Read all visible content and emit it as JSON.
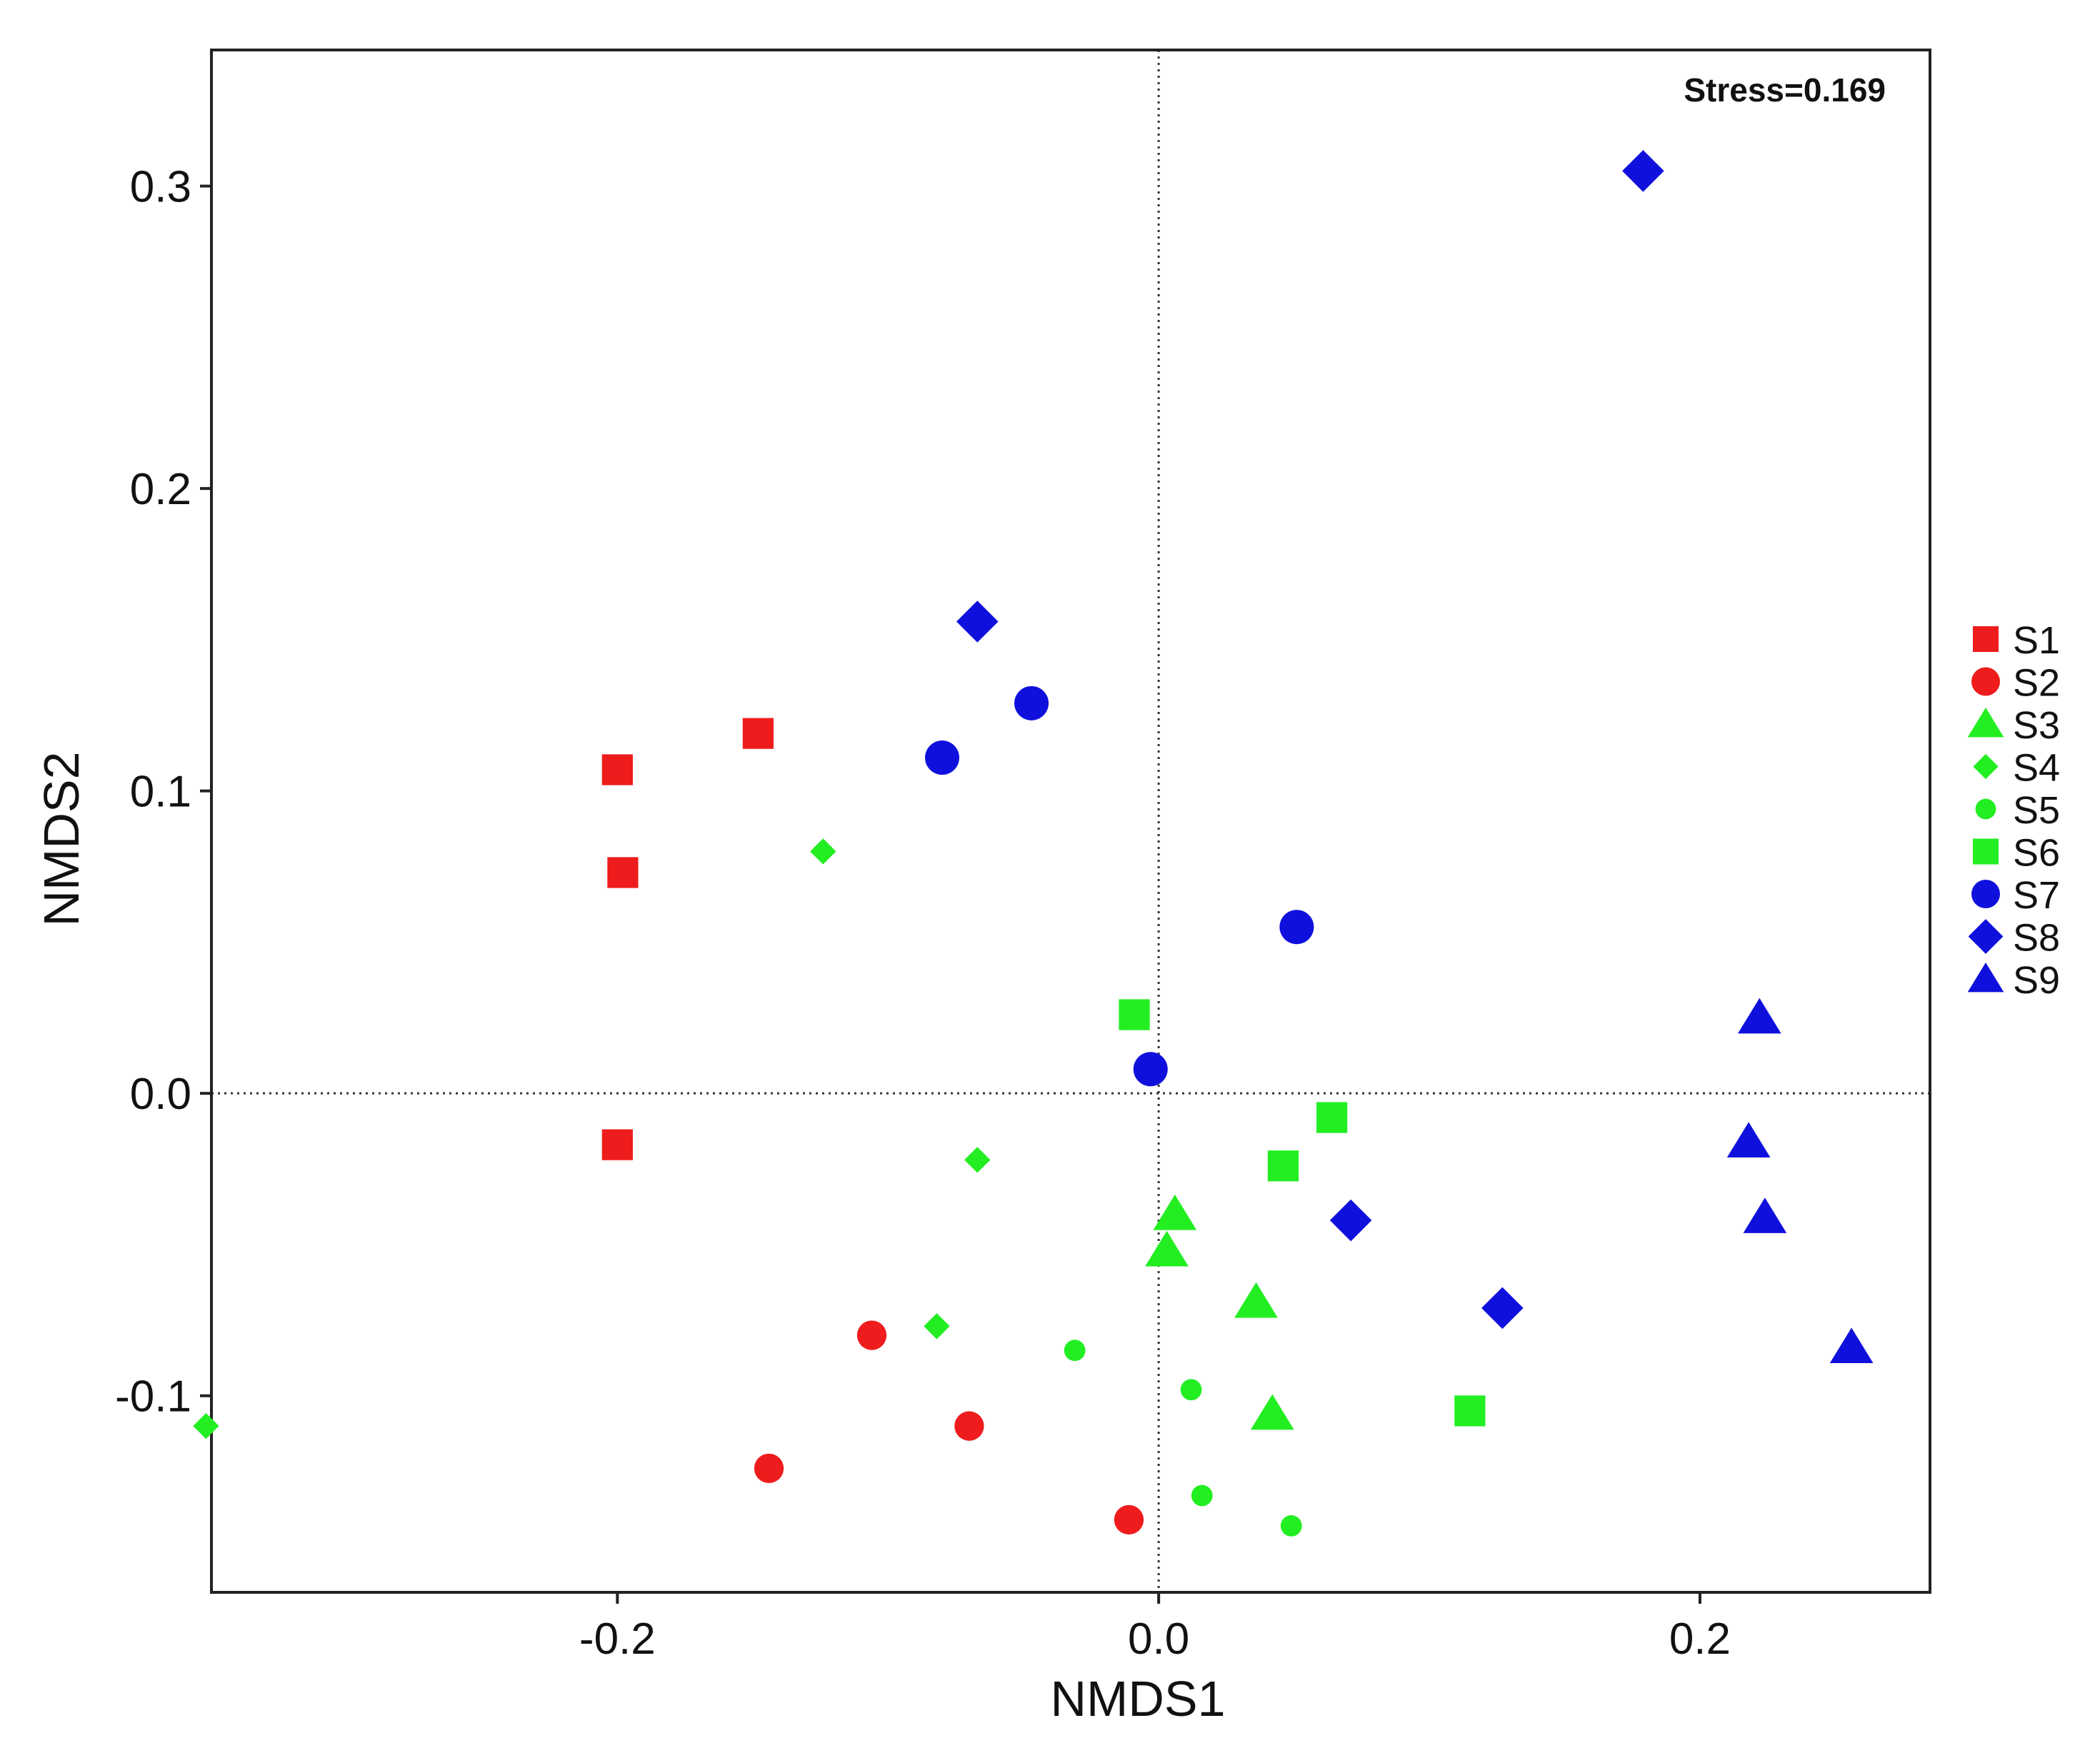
{
  "chart_data": {
    "type": "scatter",
    "title": "",
    "xlabel": "NMDS1",
    "ylabel": "NMDS2",
    "annotation": "Stress=0.169",
    "xlim": [
      -0.35,
      0.285
    ],
    "ylim": [
      -0.165,
      0.345
    ],
    "x_ticks": [
      {
        "value": -0.2,
        "label": "-0.2"
      },
      {
        "value": 0.0,
        "label": "0.0"
      },
      {
        "value": 0.2,
        "label": "0.2"
      }
    ],
    "y_ticks": [
      {
        "value": -0.1,
        "label": "-0.1"
      },
      {
        "value": 0.0,
        "label": "0.0"
      },
      {
        "value": 0.1,
        "label": "0.1"
      },
      {
        "value": 0.2,
        "label": "0.2"
      },
      {
        "value": 0.3,
        "label": "0.3"
      }
    ],
    "reference_lines": {
      "x": 0,
      "y": 0,
      "style": "dotted"
    },
    "grid": false,
    "legend_position": "right",
    "series": [
      {
        "name": "S1",
        "marker": "square",
        "size": "large",
        "color": "#ee1c1c",
        "points": [
          [
            -0.2,
            0.107
          ],
          [
            -0.148,
            0.119
          ],
          [
            -0.198,
            0.073
          ],
          [
            -0.2,
            -0.017
          ]
        ]
      },
      {
        "name": "S2",
        "marker": "circle",
        "size": "medium",
        "color": "#ee1c1c",
        "points": [
          [
            -0.106,
            -0.08
          ],
          [
            -0.07,
            -0.11
          ],
          [
            -0.144,
            -0.124
          ],
          [
            -0.011,
            -0.141
          ]
        ]
      },
      {
        "name": "S3",
        "marker": "triangle",
        "size": "large",
        "color": "#22ee22",
        "points": [
          [
            0.006,
            -0.04
          ],
          [
            0.003,
            -0.052
          ],
          [
            0.036,
            -0.069
          ],
          [
            0.042,
            -0.106
          ]
        ]
      },
      {
        "name": "S4",
        "marker": "diamond",
        "size": "small",
        "color": "#22ee22",
        "points": [
          [
            -0.124,
            0.08
          ],
          [
            -0.067,
            -0.022
          ],
          [
            -0.082,
            -0.077
          ],
          [
            -0.352,
            -0.11
          ]
        ]
      },
      {
        "name": "S5",
        "marker": "circle",
        "size": "small",
        "color": "#22ee22",
        "points": [
          [
            -0.031,
            -0.085
          ],
          [
            0.012,
            -0.098
          ],
          [
            0.016,
            -0.133
          ],
          [
            0.049,
            -0.143
          ]
        ]
      },
      {
        "name": "S6",
        "marker": "square",
        "size": "large",
        "color": "#22ee22",
        "points": [
          [
            -0.009,
            0.026
          ],
          [
            0.064,
            -0.008
          ],
          [
            0.046,
            -0.024
          ],
          [
            0.115,
            -0.105
          ]
        ]
      },
      {
        "name": "S7",
        "marker": "circle",
        "size": "large",
        "color": "#1010dd",
        "points": [
          [
            -0.047,
            0.129
          ],
          [
            -0.08,
            0.111
          ],
          [
            0.051,
            0.055
          ],
          [
            -0.003,
            0.008
          ]
        ]
      },
      {
        "name": "S8",
        "marker": "diamond",
        "size": "large",
        "color": "#1010dd",
        "points": [
          [
            0.179,
            0.305
          ],
          [
            -0.067,
            0.156
          ],
          [
            0.071,
            -0.042
          ],
          [
            0.127,
            -0.071
          ]
        ]
      },
      {
        "name": "S9",
        "marker": "triangle",
        "size": "large",
        "color": "#1010dd",
        "points": [
          [
            0.222,
            0.025
          ],
          [
            0.218,
            -0.016
          ],
          [
            0.224,
            -0.041
          ],
          [
            0.256,
            -0.084
          ]
        ]
      }
    ]
  }
}
